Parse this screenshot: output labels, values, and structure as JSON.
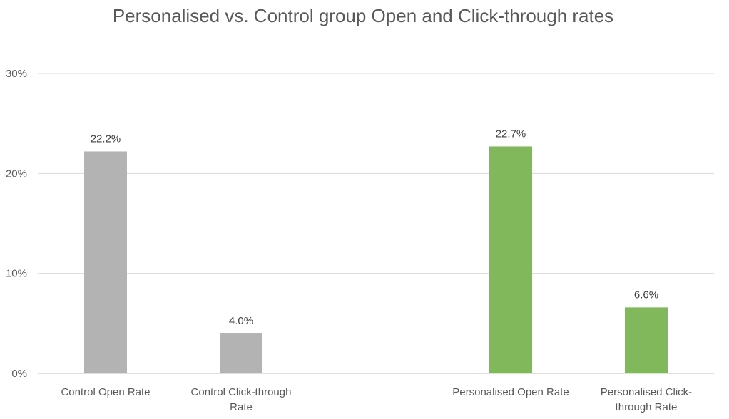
{
  "chart_data": {
    "type": "bar",
    "title": "Personalised vs. Control group Open and Click-through rates",
    "xlabel": "",
    "ylabel": "",
    "ylim": [
      0,
      30
    ],
    "yticks": [
      0,
      10,
      20,
      30
    ],
    "ytick_labels": [
      "0%",
      "10%",
      "20%",
      "30%"
    ],
    "grid": true,
    "legend": "none",
    "categories": [
      [
        "Control Open Rate"
      ],
      [
        "Control Click-through",
        "Rate"
      ],
      [
        "Personalised Open Rate"
      ],
      [
        "Personalised Click-",
        "through Rate"
      ]
    ],
    "values": [
      22.2,
      4.0,
      22.7,
      6.6
    ],
    "data_labels": [
      "22.2%",
      "4.0%",
      "22.7%",
      "6.6%"
    ],
    "bar_colors": [
      "#b3b3b3",
      "#b3b3b3",
      "#80b85b",
      "#80b85b"
    ]
  }
}
